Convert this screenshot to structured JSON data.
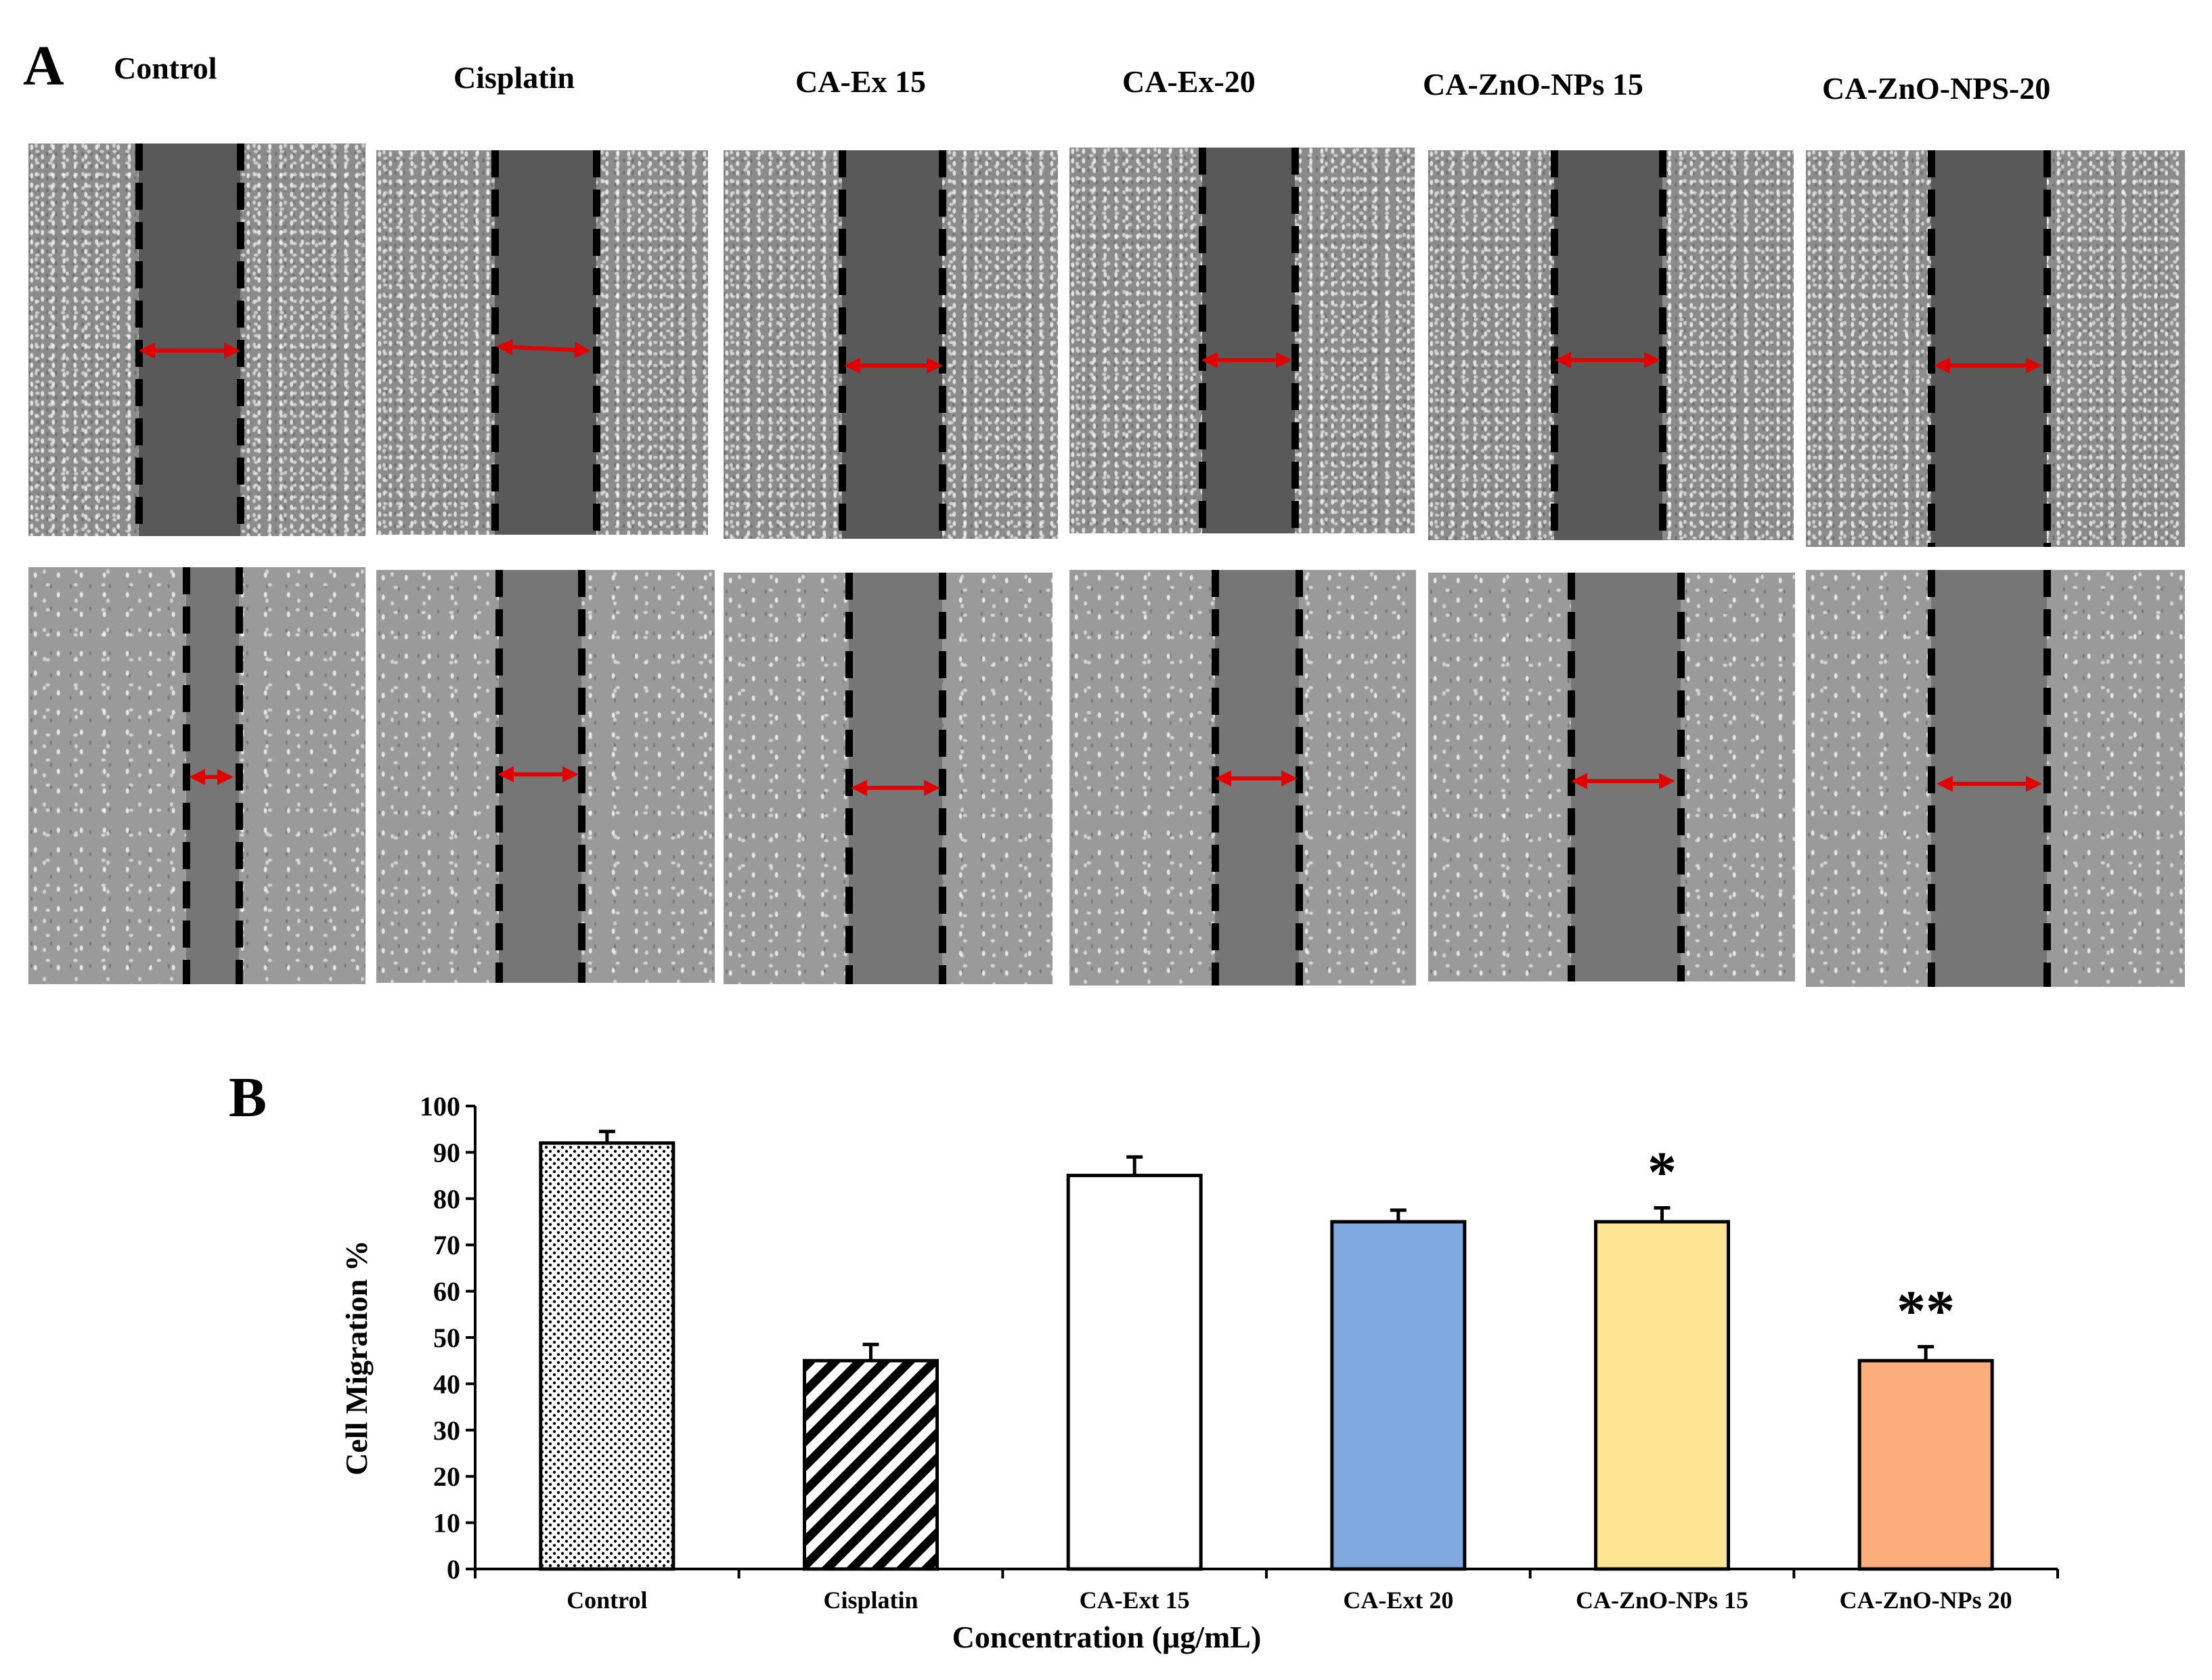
{
  "panels": {
    "a_label": "A",
    "b_label": "B",
    "column_labels": [
      "Control",
      "Cisplatin",
      "CA-Ex 15",
      "CA-Ex-20",
      "CA-ZnO-NPs 15",
      "CA-ZnO-NPS-20"
    ]
  },
  "colors": {
    "arrow": "#e00000",
    "bar_outline": "#000000",
    "ca_ext_20": "#7fa9df",
    "ca_zno_15": "#fde594",
    "ca_zno_20": "#fbae7c"
  },
  "chart_data": {
    "type": "bar",
    "title": "",
    "xlabel": "Concentration (μg/mL)",
    "ylabel": "Cell Migration %",
    "ylim": [
      0,
      100
    ],
    "yticks": [
      0,
      10,
      20,
      30,
      40,
      50,
      60,
      70,
      80,
      90,
      100
    ],
    "categories": [
      "Control",
      "Cisplatin",
      "CA-Ext 15",
      "CA-Ext 20",
      "CA-ZnO-NPs 15",
      "CA-ZnO-NPs 20"
    ],
    "values": [
      92,
      45,
      85,
      75,
      75,
      45
    ],
    "errors": [
      2.5,
      3.5,
      4,
      2.5,
      3,
      3
    ],
    "significance": [
      "",
      "",
      "",
      "",
      "*",
      "**"
    ],
    "fills": [
      "dots",
      "stripes",
      "#ffffff",
      "#7fa9df",
      "#fde594",
      "#fbae7c"
    ],
    "grid": false,
    "legend": "none"
  }
}
